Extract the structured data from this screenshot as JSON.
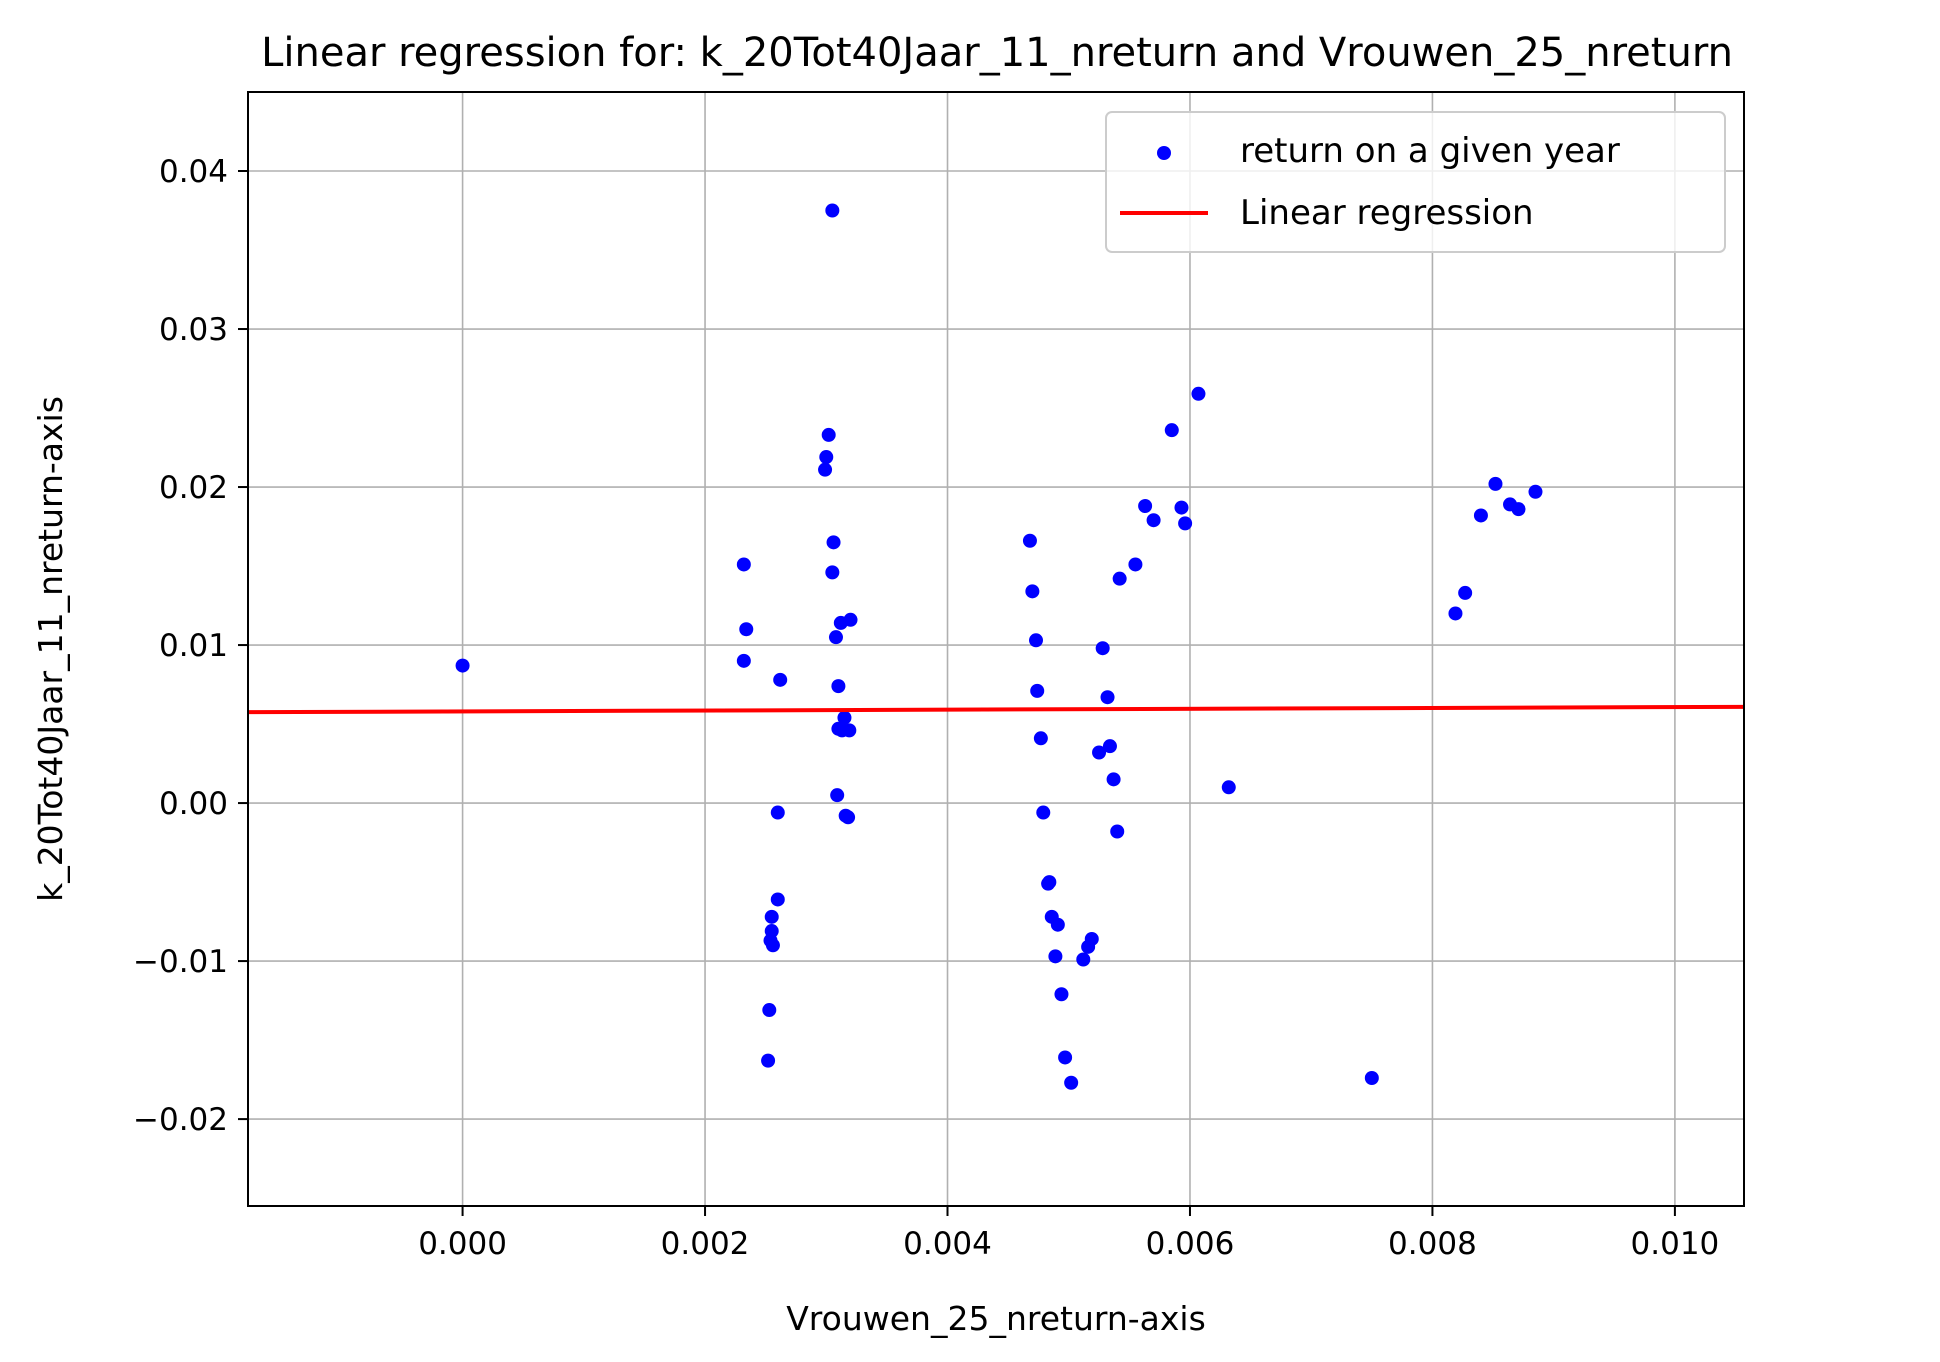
{
  "chart_data": {
    "type": "scatter",
    "title": "Linear regression for: k_20Tot40Jaar_11_nreturn and Vrouwen_25_nreturn",
    "xlabel": "Vrouwen_25_nreturn-axis",
    "ylabel": "k_20Tot40Jaar_11_nreturn-axis",
    "xlim": [
      -0.00177,
      0.01057
    ],
    "ylim": [
      -0.0255,
      0.045
    ],
    "grid": true,
    "legend_position": "top-right",
    "x_ticks": [
      0.0,
      0.002,
      0.004,
      0.006,
      0.008,
      0.01
    ],
    "x_tick_labels": [
      "0.000",
      "0.002",
      "0.004",
      "0.006",
      "0.008",
      "0.010"
    ],
    "y_ticks": [
      -0.02,
      -0.01,
      0.0,
      0.01,
      0.02,
      0.03,
      0.04
    ],
    "y_tick_labels": [
      "−0.02",
      "−0.01",
      "0.00",
      "0.01",
      "0.02",
      "0.03",
      "0.04"
    ],
    "colors": {
      "points": "#0000ff",
      "line": "#ff0000",
      "grid": "#b0b0b0"
    },
    "series": [
      {
        "name": "return on a given year",
        "kind": "scatter",
        "points": [
          [
            0.0,
            0.0087
          ],
          [
            0.00232,
            0.0151
          ],
          [
            0.00234,
            0.011
          ],
          [
            0.00232,
            0.009
          ],
          [
            0.00262,
            0.0078
          ],
          [
            0.0026,
            -0.0006
          ],
          [
            0.0026,
            -0.0061
          ],
          [
            0.00255,
            -0.0072
          ],
          [
            0.00255,
            -0.0081
          ],
          [
            0.00254,
            -0.0087
          ],
          [
            0.00256,
            -0.009
          ],
          [
            0.00253,
            -0.0131
          ],
          [
            0.00252,
            -0.0163
          ],
          [
            0.00302,
            0.0233
          ],
          [
            0.003,
            0.0219
          ],
          [
            0.00299,
            0.0211
          ],
          [
            0.00305,
            0.0375
          ],
          [
            0.00306,
            0.0165
          ],
          [
            0.00305,
            0.0146
          ],
          [
            0.00312,
            0.0114
          ],
          [
            0.0032,
            0.0116
          ],
          [
            0.00308,
            0.0105
          ],
          [
            0.0031,
            0.0074
          ],
          [
            0.00315,
            0.0054
          ],
          [
            0.0031,
            0.0047
          ],
          [
            0.00313,
            0.0046
          ],
          [
            0.00319,
            0.0046
          ],
          [
            0.00309,
            0.0005
          ],
          [
            0.00316,
            -0.0008
          ],
          [
            0.00318,
            -0.0009
          ],
          [
            0.00468,
            0.0166
          ],
          [
            0.0047,
            0.0134
          ],
          [
            0.00473,
            0.0103
          ],
          [
            0.00474,
            0.0071
          ],
          [
            0.00477,
            0.0041
          ],
          [
            0.00479,
            -0.0006
          ],
          [
            0.00483,
            -0.0051
          ],
          [
            0.00484,
            -0.005
          ],
          [
            0.00486,
            -0.0072
          ],
          [
            0.00491,
            -0.0077
          ],
          [
            0.00489,
            -0.0097
          ],
          [
            0.00494,
            -0.0121
          ],
          [
            0.00497,
            -0.0161
          ],
          [
            0.00502,
            -0.0177
          ],
          [
            0.00512,
            -0.0099
          ],
          [
            0.00516,
            -0.0091
          ],
          [
            0.00519,
            -0.0086
          ],
          [
            0.00525,
            0.0032
          ],
          [
            0.00528,
            0.0098
          ],
          [
            0.00532,
            0.0067
          ],
          [
            0.00534,
            0.0036
          ],
          [
            0.00537,
            0.0015
          ],
          [
            0.0054,
            -0.0018
          ],
          [
            0.00542,
            0.0142
          ],
          [
            0.00555,
            0.0151
          ],
          [
            0.00563,
            0.0188
          ],
          [
            0.0057,
            0.0179
          ],
          [
            0.00585,
            0.0236
          ],
          [
            0.00593,
            0.0187
          ],
          [
            0.00596,
            0.0177
          ],
          [
            0.00607,
            0.0259
          ],
          [
            0.00632,
            0.001
          ],
          [
            0.0075,
            -0.0174
          ],
          [
            0.00819,
            0.012
          ],
          [
            0.00827,
            0.0133
          ],
          [
            0.0084,
            0.0182
          ],
          [
            0.00852,
            0.0202
          ],
          [
            0.00864,
            0.0189
          ],
          [
            0.00871,
            0.0186
          ],
          [
            0.00885,
            0.0197
          ]
        ]
      },
      {
        "name": "Linear regression",
        "kind": "line",
        "slope": 0.0275,
        "intercept": 0.0058
      }
    ]
  }
}
